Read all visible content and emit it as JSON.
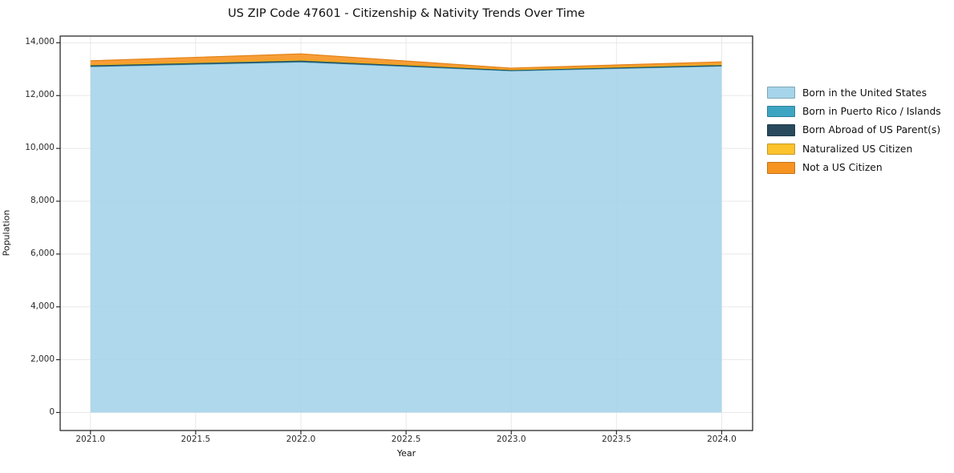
{
  "chart_data": {
    "type": "area",
    "stacked": true,
    "title": "US ZIP Code 47601 - Citizenship & Nativity Trends Over Time",
    "xlabel": "Year",
    "ylabel": "Population",
    "x": [
      2021,
      2022,
      2023,
      2024
    ],
    "series": [
      {
        "name": "Born in the United States",
        "color": "#a6d4ea",
        "edge_color": "#8fc6e0",
        "values": [
          13090,
          13260,
          12930,
          13110
        ]
      },
      {
        "name": "Born in Puerto Rico / Islands",
        "color": "#3da5c2",
        "edge_color": "#3695b1",
        "values": [
          10,
          15,
          10,
          10
        ]
      },
      {
        "name": "Born Abroad of US Parent(s)",
        "color": "#29495c",
        "edge_color": "#223d4d",
        "values": [
          45,
          50,
          25,
          35
        ]
      },
      {
        "name": "Naturalized US Citizen",
        "color": "#fcc32d",
        "edge_color": "#e5ab12",
        "values": [
          35,
          45,
          20,
          45
        ]
      },
      {
        "name": "Not a US Citizen",
        "color": "#f79421",
        "edge_color": "#e07f12",
        "values": [
          140,
          210,
          55,
          80
        ]
      }
    ],
    "x_ticks": [
      {
        "value": 2021.0,
        "label": "2021.0"
      },
      {
        "value": 2021.5,
        "label": "2021.5"
      },
      {
        "value": 2022.0,
        "label": "2022.0"
      },
      {
        "value": 2022.5,
        "label": "2022.5"
      },
      {
        "value": 2023.0,
        "label": "2023.0"
      },
      {
        "value": 2023.5,
        "label": "2023.5"
      },
      {
        "value": 2024.0,
        "label": "2024.0"
      }
    ],
    "y_ticks": [
      {
        "value": 0,
        "label": "0"
      },
      {
        "value": 2000,
        "label": "2,000"
      },
      {
        "value": 4000,
        "label": "4,000"
      },
      {
        "value": 6000,
        "label": "6,000"
      },
      {
        "value": 8000,
        "label": "8,000"
      },
      {
        "value": 10000,
        "label": "10,000"
      },
      {
        "value": 12000,
        "label": "12,000"
      },
      {
        "value": 14000,
        "label": "14,000"
      }
    ],
    "xlim": [
      2020.856,
      2024.147
    ],
    "ylim": [
      -683,
      14254
    ],
    "grid": true,
    "legend_position": "outside-right",
    "style": {
      "grid_color": "#e8e8e8",
      "spine_color": "#2b2b2b",
      "fill_opacity": 0.9
    }
  }
}
